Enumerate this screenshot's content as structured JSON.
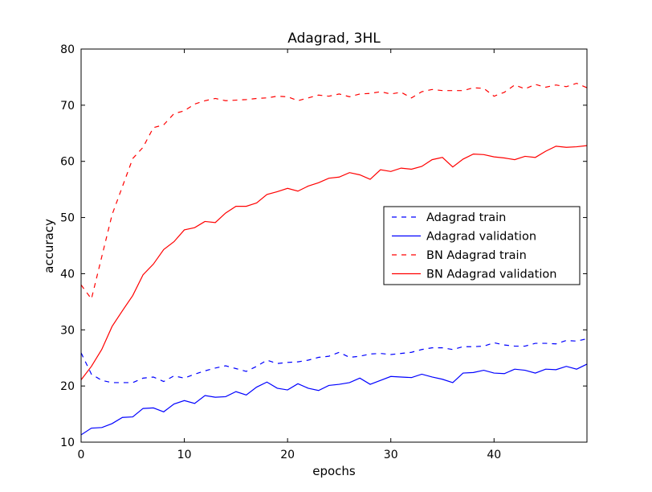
{
  "chart_data": {
    "type": "line",
    "title": "Adagrad, 3HL",
    "xlabel": "epochs",
    "ylabel": "accuracy",
    "xlim": [
      0,
      49
    ],
    "ylim": [
      10,
      80
    ],
    "xticks": [
      0,
      10,
      20,
      30,
      40
    ],
    "yticks": [
      10,
      20,
      30,
      40,
      50,
      60,
      70,
      80
    ],
    "grid": false,
    "legend": "center-right",
    "series": [
      {
        "name": "Adagrad train",
        "color": "#0000ff",
        "style": "dashed",
        "x": [
          0,
          1,
          2,
          3,
          4,
          5,
          6,
          7,
          8,
          9,
          10,
          11,
          12,
          13,
          14,
          15,
          16,
          17,
          18,
          19,
          20,
          21,
          22,
          23,
          24,
          25,
          26,
          27,
          28,
          29,
          30,
          31,
          32,
          33,
          34,
          35,
          36,
          37,
          38,
          39,
          40,
          41,
          42,
          43,
          44,
          45,
          46,
          47,
          48,
          49
        ],
        "values": [
          25.9,
          22.1,
          21.0,
          20.6,
          20.6,
          20.6,
          21.4,
          21.6,
          20.8,
          21.8,
          21.4,
          22.1,
          22.7,
          23.2,
          23.6,
          23.1,
          22.6,
          23.5,
          24.6,
          24.0,
          24.2,
          24.3,
          24.6,
          25.1,
          25.3,
          26.0,
          25.1,
          25.3,
          25.7,
          25.8,
          25.6,
          25.8,
          26.0,
          26.5,
          26.8,
          26.8,
          26.5,
          27.0,
          27.0,
          27.1,
          27.7,
          27.3,
          27.1,
          27.1,
          27.6,
          27.6,
          27.5,
          28.1,
          28.0,
          28.4
        ]
      },
      {
        "name": "Adagrad validation",
        "color": "#0000ff",
        "style": "solid",
        "x": [
          0,
          1,
          2,
          3,
          4,
          5,
          6,
          7,
          8,
          9,
          10,
          11,
          12,
          13,
          14,
          15,
          16,
          17,
          18,
          19,
          20,
          21,
          22,
          23,
          24,
          25,
          26,
          27,
          28,
          29,
          30,
          31,
          32,
          33,
          34,
          35,
          36,
          37,
          38,
          39,
          40,
          41,
          42,
          43,
          44,
          45,
          46,
          47,
          48,
          49
        ],
        "values": [
          11.3,
          12.5,
          12.6,
          13.3,
          14.4,
          14.5,
          16.0,
          16.1,
          15.4,
          16.8,
          17.4,
          16.9,
          18.3,
          18.0,
          18.1,
          19.0,
          18.4,
          19.8,
          20.7,
          19.6,
          19.3,
          20.4,
          19.6,
          19.2,
          20.1,
          20.3,
          20.6,
          21.4,
          20.3,
          21.0,
          21.7,
          21.6,
          21.5,
          22.1,
          21.6,
          21.2,
          20.6,
          22.3,
          22.4,
          22.8,
          22.3,
          22.2,
          23.0,
          22.8,
          22.3,
          23.0,
          22.9,
          23.5,
          23.0,
          23.9
        ]
      },
      {
        "name": "BN Adagrad train",
        "color": "#ff0000",
        "style": "dashed",
        "x": [
          0,
          1,
          2,
          3,
          4,
          5,
          6,
          7,
          8,
          9,
          10,
          11,
          12,
          13,
          14,
          15,
          16,
          17,
          18,
          19,
          20,
          21,
          22,
          23,
          24,
          25,
          26,
          27,
          28,
          29,
          30,
          31,
          32,
          33,
          34,
          35,
          36,
          37,
          38,
          39,
          40,
          41,
          42,
          43,
          44,
          45,
          46,
          47,
          48,
          49
        ],
        "values": [
          38.0,
          35.5,
          43.0,
          50.5,
          55.5,
          60.5,
          62.5,
          66.0,
          66.5,
          68.5,
          69.0,
          70.2,
          70.8,
          71.2,
          70.8,
          70.9,
          71.0,
          71.2,
          71.3,
          71.6,
          71.5,
          70.8,
          71.3,
          71.8,
          71.6,
          72.0,
          71.5,
          72.0,
          72.1,
          72.4,
          72.0,
          72.3,
          71.3,
          72.4,
          72.8,
          72.6,
          72.6,
          72.6,
          73.1,
          73.0,
          71.6,
          72.3,
          73.6,
          72.9,
          73.7,
          73.2,
          73.6,
          73.3,
          73.9,
          73.1
        ]
      },
      {
        "name": "BN Adagrad validation",
        "color": "#ff0000",
        "style": "solid",
        "x": [
          0,
          1,
          2,
          3,
          4,
          5,
          6,
          7,
          8,
          9,
          10,
          11,
          12,
          13,
          14,
          15,
          16,
          17,
          18,
          19,
          20,
          21,
          22,
          23,
          24,
          25,
          26,
          27,
          28,
          29,
          30,
          31,
          32,
          33,
          34,
          35,
          36,
          37,
          38,
          39,
          40,
          41,
          42,
          43,
          44,
          45,
          46,
          47,
          48,
          49
        ],
        "values": [
          21.1,
          23.5,
          26.5,
          30.6,
          33.4,
          36.1,
          39.8,
          41.7,
          44.3,
          45.7,
          47.8,
          48.2,
          49.3,
          49.1,
          50.8,
          52.0,
          52.0,
          52.6,
          54.1,
          54.6,
          55.2,
          54.7,
          55.6,
          56.2,
          57.0,
          57.2,
          58.0,
          57.6,
          56.8,
          58.5,
          58.2,
          58.8,
          58.6,
          59.1,
          60.3,
          60.7,
          59.0,
          60.4,
          61.3,
          61.2,
          60.8,
          60.6,
          60.3,
          60.9,
          60.7,
          61.8,
          62.7,
          62.5,
          62.6,
          62.8
        ]
      }
    ]
  }
}
